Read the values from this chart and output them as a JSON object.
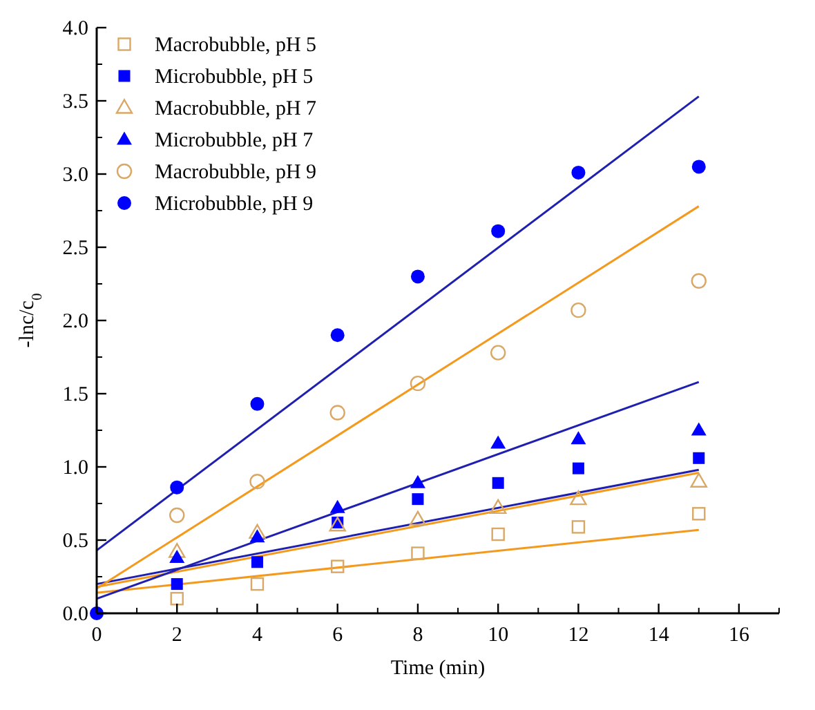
{
  "chart_data": {
    "type": "scatter",
    "xlabel": "Time (min)",
    "ylabel": "-lnc/c$_{0}$",
    "xlim": [
      0,
      17
    ],
    "ylim": [
      0,
      4
    ],
    "xticks": [
      0,
      2,
      4,
      6,
      8,
      10,
      12,
      14,
      16
    ],
    "yticks": [
      {
        "value": 0,
        "label": "0.0"
      },
      {
        "value": 0.5,
        "label": "0.5"
      },
      {
        "value": 1,
        "label": "1.0"
      },
      {
        "value": 1.5,
        "label": "1.5"
      },
      {
        "value": 2,
        "label": "2.0"
      },
      {
        "value": 2.5,
        "label": "2.5"
      },
      {
        "value": 3,
        "label": "3.0"
      },
      {
        "value": 3.5,
        "label": "3.5"
      },
      {
        "value": 4,
        "label": "4.0"
      }
    ],
    "legend": "top left",
    "grid": false,
    "series": [
      {
        "name": "Macrobubble, pH 5",
        "color": "#d9a867",
        "marker": "square",
        "x": [
          2,
          4,
          6,
          8,
          10,
          12,
          15
        ],
        "values": [
          0.1,
          0.2,
          0.32,
          0.41,
          0.54,
          0.59,
          0.68
        ]
      },
      {
        "name": "Microbubble, pH 5",
        "color": "#0000ff",
        "marker": "square",
        "x": [
          2,
          4,
          6,
          8,
          10,
          12,
          15
        ],
        "values": [
          0.2,
          0.35,
          0.62,
          0.78,
          0.89,
          0.99,
          1.06
        ]
      },
      {
        "name": "Macrobubble, pH 7",
        "color": "#d9a867",
        "marker": "triangle",
        "x": [
          2,
          4,
          6,
          8,
          10,
          12,
          15
        ],
        "values": [
          0.42,
          0.55,
          0.6,
          0.64,
          0.72,
          0.78,
          0.9
        ]
      },
      {
        "name": "Microbubble, pH 7",
        "color": "#0000ff",
        "marker": "triangle",
        "x": [
          2,
          4,
          6,
          8,
          10,
          12,
          15
        ],
        "values": [
          0.38,
          0.52,
          0.72,
          0.89,
          1.16,
          1.19,
          1.25
        ]
      },
      {
        "name": "Macrobubble, pH 9",
        "color": "#d9a867",
        "marker": "circle",
        "x": [
          2,
          4,
          6,
          8,
          10,
          12,
          15
        ],
        "values": [
          0.67,
          0.9,
          1.37,
          1.57,
          1.78,
          2.07,
          2.27
        ]
      },
      {
        "name": "Microbubble, pH 9",
        "color": "#0000ff",
        "marker": "circle",
        "x": [
          0,
          2,
          4,
          6,
          8,
          10,
          12,
          15
        ],
        "values": [
          0,
          0.86,
          1.43,
          1.9,
          2.3,
          2.61,
          3.01,
          3.05
        ]
      },
      {
        "type": "line",
        "color": "#f39a1e",
        "marker": "none",
        "x": [
          0,
          15
        ],
        "values": [
          0.14,
          0.57
        ]
      },
      {
        "type": "line",
        "color": "#2020b0",
        "marker": "none",
        "x": [
          0,
          15
        ],
        "values": [
          0.2,
          0.98
        ]
      },
      {
        "type": "line",
        "color": "#f39a1e",
        "marker": "none",
        "x": [
          0,
          15
        ],
        "values": [
          0.18,
          0.96
        ]
      },
      {
        "type": "line",
        "color": "#2020b0",
        "marker": "none",
        "x": [
          0,
          15
        ],
        "values": [
          0.1,
          1.58
        ]
      },
      {
        "type": "line",
        "color": "#f39a1e",
        "marker": "none",
        "x": [
          0,
          15
        ],
        "values": [
          0.17,
          2.78
        ]
      },
      {
        "type": "line",
        "color": "#2020b0",
        "marker": "none",
        "x": [
          0,
          15
        ],
        "values": [
          0.43,
          3.53
        ]
      }
    ]
  }
}
